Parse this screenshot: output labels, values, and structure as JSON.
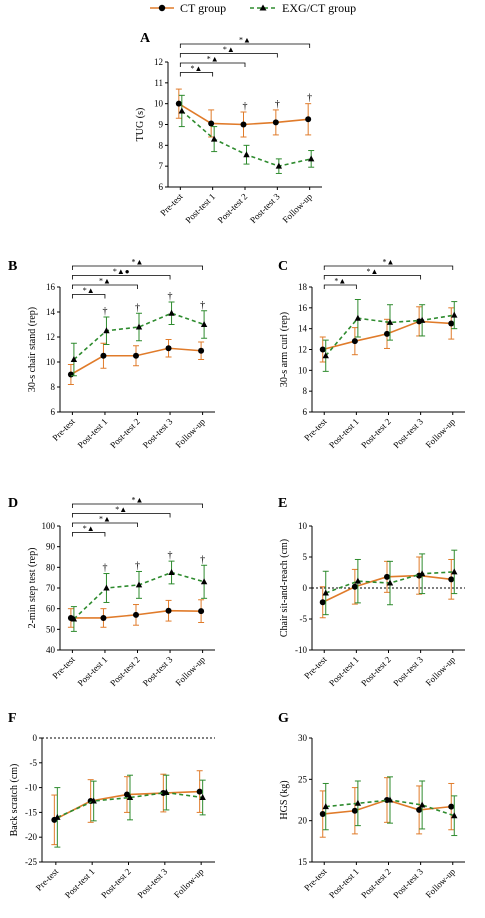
{
  "legend": {
    "ct": {
      "label": "CT group",
      "color": "#e07b2a",
      "marker": "circle",
      "line": "solid"
    },
    "exg": {
      "label": "EXG/CT group",
      "color": "#2e8b2e",
      "marker": "triangle",
      "line": "dashed"
    }
  },
  "chart_data": [
    {
      "panel": "A",
      "type": "line",
      "xlabel": "",
      "ylabel": "TUG (s)",
      "ylim": [
        6,
        12
      ],
      "yticks": [
        6,
        7,
        8,
        9,
        10,
        11,
        12
      ],
      "zero_line": false,
      "categories": [
        "Pre-test",
        "Post-test 1",
        "Post-test 2",
        "Post-test 3",
        "Follow-up"
      ],
      "series": [
        {
          "key": "ct",
          "values": [
            10.0,
            9.05,
            9.0,
            9.1,
            9.25
          ],
          "err": [
            0.7,
            0.65,
            0.6,
            0.6,
            0.75
          ]
        },
        {
          "key": "exg",
          "values": [
            9.65,
            8.3,
            7.55,
            7.0,
            7.35
          ],
          "err": [
            0.75,
            0.6,
            0.45,
            0.35,
            0.4
          ]
        }
      ],
      "daggers": [
        null,
        null,
        "†",
        "†",
        "†"
      ],
      "brackets": [
        {
          "to": 1,
          "label": "*▲"
        },
        {
          "to": 2,
          "label": "*▲"
        },
        {
          "to": 3,
          "label": "*▲"
        },
        {
          "to": 4,
          "label": "*▲"
        }
      ]
    },
    {
      "panel": "B",
      "type": "line",
      "xlabel": "",
      "ylabel": "30-s chair stand (rep)",
      "ylim": [
        6,
        16
      ],
      "yticks": [
        6,
        8,
        10,
        12,
        14,
        16
      ],
      "zero_line": false,
      "categories": [
        "Pre-test",
        "Post-test 1",
        "Post-test 2",
        "Post-test 3",
        "Follow-up"
      ],
      "series": [
        {
          "key": "ct",
          "values": [
            9.0,
            10.5,
            10.5,
            11.1,
            10.9
          ],
          "err": [
            0.8,
            1.0,
            0.8,
            0.7,
            0.7
          ]
        },
        {
          "key": "exg",
          "values": [
            10.2,
            12.5,
            12.8,
            13.9,
            13.0
          ],
          "err": [
            1.3,
            1.1,
            1.1,
            0.9,
            1.1
          ]
        }
      ],
      "daggers": [
        null,
        "†",
        "†",
        "†",
        "†"
      ],
      "brackets": [
        {
          "to": 1,
          "label": "*▲"
        },
        {
          "to": 2,
          "label": "*▲"
        },
        {
          "to": 3,
          "label": "*▲●"
        },
        {
          "to": 4,
          "label": "*▲"
        }
      ]
    },
    {
      "panel": "C",
      "type": "line",
      "xlabel": "",
      "ylabel": "30-s arm curl (rep)",
      "ylim": [
        6,
        18
      ],
      "yticks": [
        6,
        8,
        10,
        12,
        14,
        16,
        18
      ],
      "zero_line": false,
      "categories": [
        "Pre-test",
        "Post-test 1",
        "Post-test 2",
        "Post-test 3",
        "Follow-up"
      ],
      "series": [
        {
          "key": "ct",
          "values": [
            12.0,
            12.8,
            13.5,
            14.7,
            14.5
          ],
          "err": [
            1.2,
            1.3,
            1.4,
            1.4,
            1.5
          ]
        },
        {
          "key": "exg",
          "values": [
            11.4,
            15.0,
            14.6,
            14.8,
            15.3
          ],
          "err": [
            1.5,
            1.8,
            1.7,
            1.5,
            1.3
          ]
        }
      ],
      "daggers": [
        null,
        null,
        null,
        null,
        null
      ],
      "brackets": [
        {
          "to": 1,
          "label": "*▲"
        },
        {
          "to": 3,
          "label": "*▲"
        },
        {
          "to": 4,
          "label": "*▲"
        }
      ]
    },
    {
      "panel": "D",
      "type": "line",
      "xlabel": "",
      "ylabel": "2-min step test (rep)",
      "ylim": [
        40,
        100
      ],
      "yticks": [
        40,
        50,
        60,
        70,
        80,
        90,
        100
      ],
      "zero_line": false,
      "categories": [
        "Pre-test",
        "Post-test 1",
        "Post-test 2",
        "Post-test 3",
        "Follow-up"
      ],
      "series": [
        {
          "key": "ct",
          "values": [
            55.5,
            55.5,
            57.0,
            59.0,
            58.8
          ],
          "err": [
            4.5,
            4.5,
            5.0,
            5.0,
            5.5
          ]
        },
        {
          "key": "exg",
          "values": [
            55.0,
            70.0,
            71.5,
            77.5,
            73.0
          ],
          "err": [
            6.0,
            7.0,
            6.5,
            5.5,
            8.0
          ]
        }
      ],
      "daggers": [
        null,
        "†",
        "†",
        "†",
        "†"
      ],
      "brackets": [
        {
          "to": 1,
          "label": "*▲"
        },
        {
          "to": 2,
          "label": "*▲"
        },
        {
          "to": 3,
          "label": "*▲"
        },
        {
          "to": 4,
          "label": "*▲"
        }
      ]
    },
    {
      "panel": "E",
      "type": "line",
      "xlabel": "",
      "ylabel": "Chair sit-and-reach (cm)",
      "ylim": [
        -10,
        10
      ],
      "yticks": [
        -10,
        -5,
        0,
        5,
        10
      ],
      "zero_line": true,
      "categories": [
        "Pre-test",
        "Post-test 1",
        "Post-test 2",
        "Post-test 3",
        "Follow-up"
      ],
      "series": [
        {
          "key": "ct",
          "values": [
            -2.3,
            0.2,
            1.8,
            2.0,
            1.4
          ],
          "err": [
            2.5,
            2.8,
            2.5,
            3.0,
            3.2
          ]
        },
        {
          "key": "exg",
          "values": [
            -0.8,
            1.1,
            0.8,
            2.3,
            2.6
          ],
          "err": [
            3.5,
            3.5,
            3.5,
            3.2,
            3.5
          ]
        }
      ],
      "daggers": [
        null,
        null,
        null,
        null,
        null
      ],
      "brackets": []
    },
    {
      "panel": "F",
      "type": "line",
      "xlabel": "",
      "ylabel": "Back scratch (cm)",
      "ylim": [
        -25,
        0
      ],
      "yticks": [
        -25,
        -20,
        -15,
        -10,
        -5,
        0
      ],
      "zero_line": true,
      "categories": [
        "Pre-test",
        "Post-test 1",
        "Post-test 2",
        "Post-test 3",
        "Follow-up"
      ],
      "series": [
        {
          "key": "ct",
          "values": [
            -16.5,
            -12.7,
            -11.4,
            -11.1,
            -10.8
          ],
          "err": [
            5.0,
            4.3,
            3.6,
            3.8,
            4.2
          ]
        },
        {
          "key": "exg",
          "values": [
            -16.0,
            -12.7,
            -12.0,
            -11.0,
            -12.0
          ],
          "err": [
            6.0,
            4.0,
            4.5,
            3.5,
            3.5
          ]
        }
      ],
      "daggers": [
        null,
        null,
        null,
        null,
        null
      ],
      "brackets": []
    },
    {
      "panel": "G",
      "type": "line",
      "xlabel": "",
      "ylabel": "HGS (kg)",
      "ylim": [
        15,
        30
      ],
      "yticks": [
        15,
        20,
        25,
        30
      ],
      "zero_line": false,
      "categories": [
        "Pre-test",
        "Post-test 1",
        "Post-test 2",
        "Post-test 3",
        "Follow-up"
      ],
      "series": [
        {
          "key": "ct",
          "values": [
            20.8,
            21.2,
            22.5,
            21.3,
            21.7
          ],
          "err": [
            2.8,
            2.8,
            2.7,
            2.9,
            2.8
          ]
        },
        {
          "key": "exg",
          "values": [
            21.7,
            22.1,
            22.5,
            21.9,
            20.6
          ],
          "err": [
            2.8,
            2.7,
            2.8,
            2.9,
            2.4
          ]
        }
      ],
      "daggers": [
        null,
        null,
        null,
        null,
        null
      ],
      "brackets": []
    }
  ]
}
